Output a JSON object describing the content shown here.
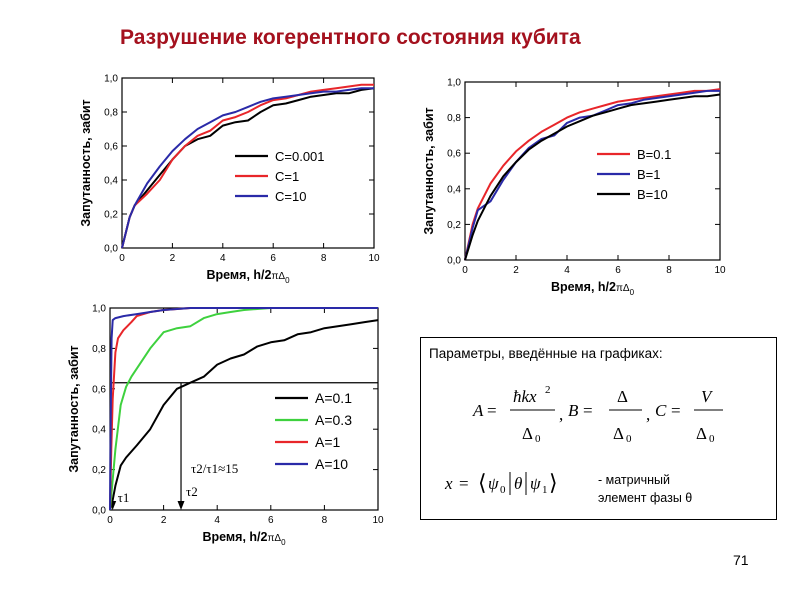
{
  "slide": {
    "title": "Разрушение когерентного состояния кубита",
    "page_number": "71"
  },
  "chart_data": [
    {
      "type": "line",
      "ylabel": "Запутанность, забит",
      "xlabel_prefix": "Время, h/2",
      "xlabel_symbol": "π",
      "xlabel_delta": "Δ",
      "xlabel_sub": "0",
      "xlim": [
        0,
        10
      ],
      "ylim": [
        0,
        1.0
      ],
      "xticks": [
        "0",
        "2",
        "4",
        "6",
        "8",
        "10"
      ],
      "yticks": [
        "0,0",
        "0,2",
        "0,4",
        "0,6",
        "0,8",
        "1,0"
      ],
      "legend_position": "center-right",
      "series": [
        {
          "name": "C=0.001",
          "color": "#000000",
          "x": [
            0,
            0.3,
            0.5,
            1,
            1.5,
            2,
            2.5,
            3,
            3.5,
            4,
            4.5,
            5,
            5.5,
            6,
            6.5,
            7,
            7.5,
            8,
            8.5,
            9,
            9.5,
            10
          ],
          "y": [
            0,
            0.18,
            0.25,
            0.34,
            0.43,
            0.52,
            0.6,
            0.64,
            0.66,
            0.72,
            0.74,
            0.75,
            0.8,
            0.84,
            0.85,
            0.87,
            0.89,
            0.9,
            0.91,
            0.91,
            0.93,
            0.94
          ]
        },
        {
          "name": "C=1",
          "color": "#e8262a",
          "x": [
            0,
            0.3,
            0.5,
            1,
            1.5,
            2,
            2.5,
            3,
            3.5,
            4,
            4.5,
            5,
            5.5,
            6,
            6.5,
            7,
            7.5,
            8,
            8.5,
            9,
            9.5,
            10
          ],
          "y": [
            0,
            0.18,
            0.25,
            0.32,
            0.4,
            0.52,
            0.6,
            0.66,
            0.69,
            0.75,
            0.77,
            0.8,
            0.84,
            0.87,
            0.88,
            0.9,
            0.92,
            0.93,
            0.94,
            0.95,
            0.96,
            0.96
          ]
        },
        {
          "name": "C=10",
          "color": "#2a2aa8",
          "x": [
            0,
            0.3,
            0.5,
            1,
            1.5,
            2,
            2.5,
            3,
            3.5,
            4,
            4.5,
            5,
            5.5,
            6,
            6.5,
            7,
            7.5,
            8,
            8.5,
            9,
            9.5,
            10
          ],
          "y": [
            0,
            0.18,
            0.25,
            0.38,
            0.48,
            0.57,
            0.64,
            0.7,
            0.74,
            0.78,
            0.8,
            0.83,
            0.86,
            0.88,
            0.89,
            0.9,
            0.91,
            0.92,
            0.92,
            0.93,
            0.94,
            0.94
          ]
        }
      ]
    },
    {
      "type": "line",
      "ylabel": "Запутанность, забит",
      "xlabel_prefix": "Время, h/2",
      "xlabel_symbol": "π",
      "xlabel_delta": "Δ",
      "xlabel_sub": "0",
      "xlim": [
        0,
        10
      ],
      "ylim": [
        0,
        1.0
      ],
      "xticks": [
        "0",
        "2",
        "4",
        "6",
        "8",
        "10"
      ],
      "yticks": [
        "0,0",
        "0,2",
        "0,4",
        "0,6",
        "0,8",
        "1,0"
      ],
      "legend_position": "center-right",
      "series": [
        {
          "name": "B=0.1",
          "color": "#e8262a",
          "x": [
            0,
            0.3,
            0.5,
            1,
            1.5,
            2,
            2.5,
            3,
            3.5,
            4,
            4.5,
            5,
            5.5,
            6,
            6.5,
            7,
            7.5,
            8,
            8.5,
            9,
            9.5,
            10
          ],
          "y": [
            0,
            0.2,
            0.29,
            0.43,
            0.53,
            0.61,
            0.67,
            0.72,
            0.76,
            0.8,
            0.83,
            0.85,
            0.87,
            0.89,
            0.9,
            0.91,
            0.92,
            0.93,
            0.94,
            0.95,
            0.95,
            0.96
          ]
        },
        {
          "name": "B=1",
          "color": "#2a2aa8",
          "x": [
            0,
            0.3,
            0.5,
            1,
            1.5,
            2,
            2.5,
            3,
            3.5,
            4,
            4.5,
            5,
            5.5,
            6,
            6.5,
            7,
            7.5,
            8,
            8.5,
            9,
            9.5,
            10
          ],
          "y": [
            0,
            0.18,
            0.28,
            0.33,
            0.45,
            0.55,
            0.63,
            0.68,
            0.7,
            0.77,
            0.8,
            0.81,
            0.84,
            0.87,
            0.88,
            0.9,
            0.91,
            0.92,
            0.93,
            0.94,
            0.95,
            0.95
          ]
        },
        {
          "name": "B=10",
          "color": "#000000",
          "x": [
            0,
            0.3,
            0.5,
            1,
            1.5,
            2,
            2.5,
            3,
            3.5,
            4,
            4.5,
            5,
            5.5,
            6,
            6.5,
            7,
            7.5,
            8,
            8.5,
            9,
            9.5,
            10
          ],
          "y": [
            0,
            0.14,
            0.22,
            0.36,
            0.47,
            0.55,
            0.62,
            0.67,
            0.71,
            0.75,
            0.78,
            0.81,
            0.83,
            0.85,
            0.87,
            0.88,
            0.89,
            0.9,
            0.91,
            0.92,
            0.92,
            0.93
          ]
        }
      ]
    },
    {
      "type": "line",
      "ylabel": "Запутанность, забит",
      "xlabel_prefix": "Время, h/2",
      "xlabel_symbol": "π",
      "xlabel_delta": "Δ",
      "xlabel_sub": "0",
      "xlim": [
        0,
        10
      ],
      "ylim": [
        0,
        1.0
      ],
      "xticks": [
        "0",
        "2",
        "4",
        "6",
        "8",
        "10"
      ],
      "yticks": [
        "0,0",
        "0,2",
        "0,4",
        "0,6",
        "0,8",
        "1,0"
      ],
      "legend_position": "center-right",
      "series": [
        {
          "name": "A=0.1",
          "color": "#000000",
          "x": [
            0,
            0.1,
            0.2,
            0.4,
            0.6,
            1,
            1.5,
            2,
            2.5,
            3,
            3.5,
            4,
            4.5,
            5,
            5.5,
            6,
            6.5,
            7,
            7.5,
            8,
            8.5,
            9,
            9.5,
            10
          ],
          "y": [
            0,
            0.05,
            0.12,
            0.22,
            0.26,
            0.32,
            0.4,
            0.52,
            0.6,
            0.63,
            0.66,
            0.72,
            0.75,
            0.77,
            0.81,
            0.83,
            0.84,
            0.87,
            0.88,
            0.9,
            0.91,
            0.92,
            0.93,
            0.94
          ]
        },
        {
          "name": "A=0.3",
          "color": "#3ed13e",
          "x": [
            0,
            0.1,
            0.2,
            0.4,
            0.6,
            0.8,
            1,
            1.5,
            2,
            2.5,
            3,
            3.5,
            4,
            4.5,
            5,
            6,
            7,
            8,
            9,
            10
          ],
          "y": [
            0,
            0.15,
            0.3,
            0.52,
            0.61,
            0.66,
            0.7,
            0.8,
            0.88,
            0.9,
            0.91,
            0.95,
            0.97,
            0.98,
            0.99,
            1.0,
            1.0,
            1.0,
            1.0,
            1.0
          ]
        },
        {
          "name": "A=1",
          "color": "#e8262a",
          "x": [
            0,
            0.05,
            0.1,
            0.2,
            0.3,
            0.5,
            0.8,
            1,
            1.5,
            2,
            3,
            4,
            5,
            6,
            8,
            10
          ],
          "y": [
            0,
            0.3,
            0.55,
            0.78,
            0.85,
            0.89,
            0.93,
            0.96,
            0.98,
            0.99,
            1.0,
            1.0,
            1.0,
            1.0,
            1.0,
            1.0
          ]
        },
        {
          "name": "A=10",
          "color": "#2a2aa8",
          "x": [
            0,
            0.03,
            0.06,
            0.1,
            0.2,
            0.5,
            1,
            1.5,
            2,
            3,
            4,
            6,
            8,
            10
          ],
          "y": [
            0,
            0.5,
            0.85,
            0.94,
            0.95,
            0.96,
            0.97,
            0.98,
            0.99,
            1.0,
            1.0,
            1.0,
            1.0,
            1.0
          ]
        }
      ],
      "annotations": {
        "hline_value": 0.63,
        "tau1_x": 0.1,
        "tau2_x": 2.65,
        "ratio_text": "τ2/τ1≈15",
        "tau1_label": "τ1",
        "tau2_label": "τ2"
      }
    }
  ],
  "params": {
    "heading": "Параметры, введённые на графиках:",
    "note_line1": "- матричный",
    "note_line2": "элемент фазы θ"
  }
}
